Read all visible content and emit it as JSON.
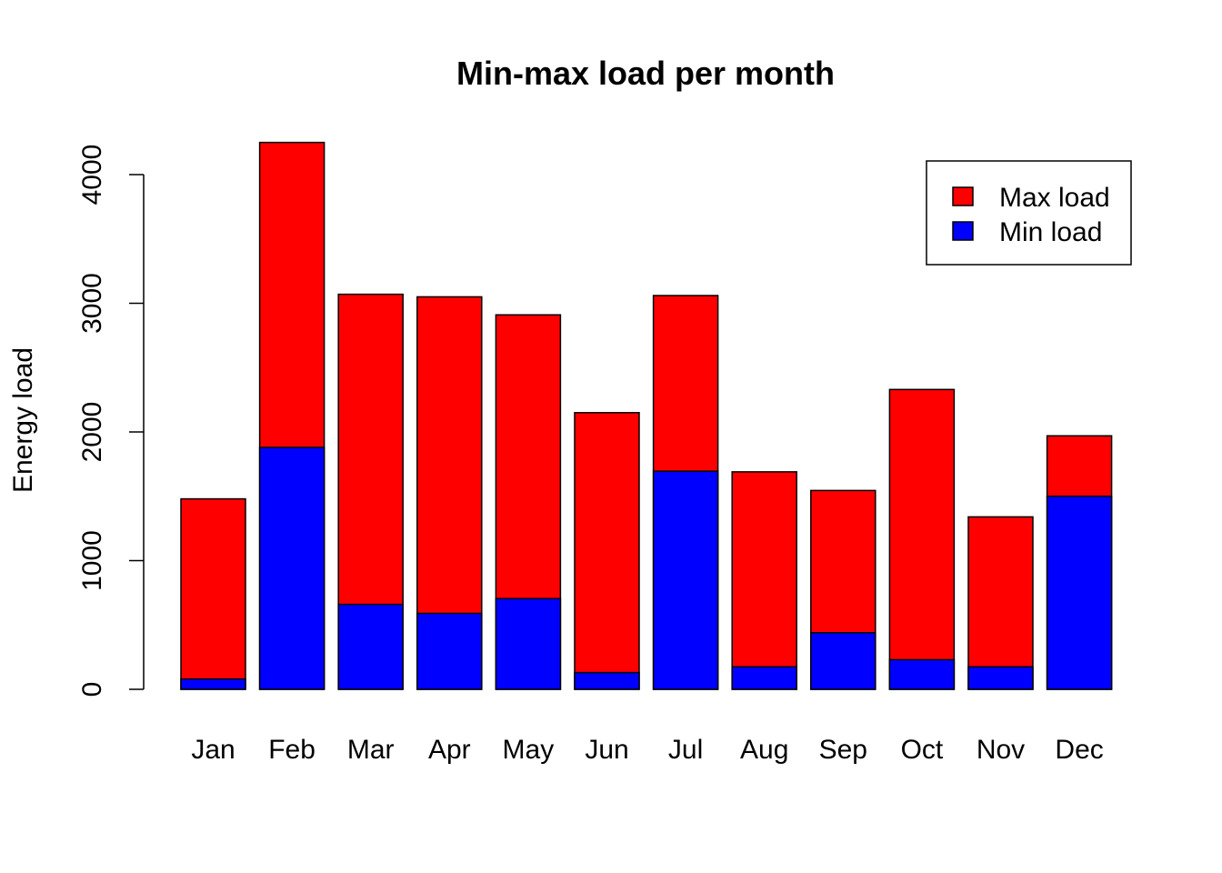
{
  "chart_data": {
    "type": "bar",
    "stacked": false,
    "overlaid": true,
    "title": "Min-max load per month",
    "xlabel": "",
    "ylabel": "Energy load",
    "ylim": [
      0,
      4000
    ],
    "yticks": [
      0,
      1000,
      2000,
      3000,
      4000
    ],
    "grid": false,
    "legend_position": "top-right",
    "categories": [
      "Jan",
      "Feb",
      "Mar",
      "Apr",
      "May",
      "Jun",
      "Jul",
      "Aug",
      "Sep",
      "Oct",
      "Nov",
      "Dec"
    ],
    "series": [
      {
        "name": "Max load",
        "color": "#ff0000",
        "values": [
          1480,
          4250,
          3070,
          3050,
          2910,
          2150,
          3060,
          1690,
          1545,
          2330,
          1340,
          1970
        ]
      },
      {
        "name": "Min load",
        "color": "#0000ff",
        "values": [
          80,
          1880,
          660,
          590,
          705,
          130,
          1695,
          175,
          440,
          230,
          175,
          1500
        ]
      }
    ]
  }
}
